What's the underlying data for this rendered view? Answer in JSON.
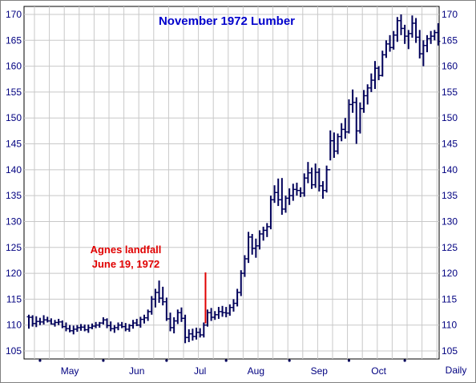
{
  "chart_data": {
    "type": "bar",
    "style": "ohlc",
    "title": "November 1972 Lumber",
    "frequency_label": "Daily",
    "ylim": [
      105,
      170
    ],
    "y_ticks": [
      105,
      110,
      115,
      120,
      125,
      130,
      135,
      140,
      145,
      150,
      155,
      160,
      165,
      170
    ],
    "y_axis_sides": "left and right",
    "grid": true,
    "x_month_labels": [
      "May",
      "Jun",
      "Jul",
      "Aug",
      "Sep",
      "Oct"
    ],
    "annotation": {
      "lines": [
        "Agnes landfall",
        "June 19, 1972"
      ],
      "color": "#e00000",
      "index": 48
    },
    "colors": {
      "bars": "#00005a",
      "title": "#0000cc",
      "axis_text": "#000080",
      "grid": "#c8c8c8",
      "background": "#ffffff",
      "outer": "#808080"
    },
    "series": [
      {
        "values": [
          [
            111.6,
            112.0,
            109.3,
            111.5
          ],
          [
            111.5,
            111.9,
            109.7,
            110.3
          ],
          [
            110.3,
            111.7,
            109.6,
            110.7
          ],
          [
            110.7,
            111.4,
            110.0,
            110.6
          ],
          [
            110.6,
            111.9,
            110.1,
            111.0
          ],
          [
            111.0,
            111.6,
            110.5,
            110.8
          ],
          [
            110.8,
            111.3,
            110.1,
            110.2
          ],
          [
            110.2,
            111.0,
            109.7,
            110.5
          ],
          [
            110.5,
            111.2,
            110.0,
            110.6
          ],
          [
            110.6,
            110.9,
            109.4,
            109.7
          ],
          [
            109.7,
            110.5,
            108.8,
            109.3
          ],
          [
            109.3,
            110.0,
            108.6,
            108.9
          ],
          [
            108.9,
            109.9,
            108.2,
            109.2
          ],
          [
            109.2,
            110.0,
            108.7,
            109.5
          ],
          [
            109.5,
            110.2,
            108.9,
            109.6
          ],
          [
            109.6,
            110.1,
            108.8,
            109.1
          ],
          [
            109.1,
            110.1,
            108.5,
            109.5
          ],
          [
            109.5,
            110.3,
            109.2,
            109.8
          ],
          [
            109.8,
            110.6,
            109.4,
            110.0
          ],
          [
            110.0,
            110.6,
            109.5,
            110.4
          ],
          [
            110.4,
            111.5,
            110.1,
            111.0
          ],
          [
            111.0,
            111.3,
            109.4,
            109.9
          ],
          [
            109.9,
            110.7,
            108.8,
            109.3
          ],
          [
            109.3,
            110.0,
            108.5,
            109.5
          ],
          [
            109.5,
            110.5,
            109.0,
            110.0
          ],
          [
            110.0,
            110.6,
            109.4,
            109.7
          ],
          [
            109.7,
            110.4,
            108.8,
            109.2
          ],
          [
            109.2,
            110.2,
            108.7,
            109.9
          ],
          [
            109.9,
            111.0,
            109.3,
            110.4
          ],
          [
            110.4,
            111.2,
            109.8,
            110.0
          ],
          [
            110.0,
            111.6,
            109.5,
            111.1
          ],
          [
            111.1,
            112.0,
            110.3,
            111.4
          ],
          [
            111.4,
            113.0,
            110.8,
            112.6
          ],
          [
            112.6,
            115.6,
            112.0,
            115.0
          ],
          [
            115.0,
            117.0,
            113.4,
            116.3
          ],
          [
            116.3,
            118.6,
            114.3,
            115.2
          ],
          [
            115.2,
            117.4,
            113.8,
            114.5
          ],
          [
            114.5,
            115.3,
            110.8,
            111.2
          ],
          [
            111.2,
            112.4,
            108.8,
            109.5
          ],
          [
            109.5,
            111.5,
            108.4,
            110.8
          ],
          [
            110.8,
            113.0,
            110.2,
            112.4
          ],
          [
            112.4,
            113.4,
            110.6,
            111.3
          ],
          [
            111.3,
            112.0,
            106.5,
            107.6
          ],
          [
            107.6,
            109.2,
            106.7,
            108.3
          ],
          [
            108.3,
            109.3,
            107.0,
            107.8
          ],
          [
            107.8,
            109.5,
            107.2,
            108.6
          ],
          [
            108.6,
            109.4,
            107.6,
            108.1
          ],
          [
            108.1,
            110.5,
            107.6,
            110.0
          ],
          [
            110.0,
            113.0,
            109.7,
            112.4
          ],
          [
            112.4,
            113.3,
            110.8,
            111.5
          ],
          [
            111.5,
            112.7,
            111.0,
            112.0
          ],
          [
            112.0,
            113.5,
            111.2,
            112.6
          ],
          [
            112.6,
            113.7,
            111.6,
            112.4
          ],
          [
            112.4,
            113.5,
            111.5,
            112.3
          ],
          [
            112.3,
            114.0,
            111.8,
            113.4
          ],
          [
            113.4,
            115.0,
            112.6,
            114.2
          ],
          [
            114.2,
            117.0,
            113.6,
            116.3
          ],
          [
            116.3,
            120.6,
            115.6,
            120.0
          ],
          [
            120.0,
            123.5,
            119.3,
            122.8
          ],
          [
            122.8,
            128.0,
            122.0,
            127.0
          ],
          [
            127.0,
            127.6,
            123.6,
            124.8
          ],
          [
            124.8,
            126.7,
            123.0,
            125.3
          ],
          [
            125.3,
            128.3,
            124.6,
            127.6
          ],
          [
            127.6,
            129.0,
            126.3,
            128.3
          ],
          [
            128.3,
            129.7,
            127.0,
            129.0
          ],
          [
            129.0,
            135.0,
            128.5,
            134.2
          ],
          [
            134.2,
            137.0,
            133.6,
            135.6
          ],
          [
            135.6,
            138.3,
            133.0,
            134.2
          ],
          [
            134.2,
            138.4,
            131.3,
            132.4
          ],
          [
            132.4,
            135.0,
            131.7,
            134.5
          ],
          [
            134.5,
            136.4,
            133.2,
            135.0
          ],
          [
            135.0,
            137.3,
            134.0,
            136.2
          ],
          [
            136.2,
            137.5,
            135.0,
            136.0
          ],
          [
            136.0,
            136.6,
            134.7,
            135.5
          ],
          [
            135.5,
            139.3,
            134.8,
            138.4
          ],
          [
            138.4,
            141.5,
            137.4,
            139.4
          ],
          [
            139.4,
            140.4,
            136.3,
            137.1
          ],
          [
            137.1,
            141.2,
            136.5,
            139.5
          ],
          [
            139.5,
            140.3,
            135.8,
            136.9
          ],
          [
            136.9,
            137.8,
            134.4,
            136.0
          ],
          [
            136.0,
            140.8,
            135.6,
            140.0
          ],
          [
            140.0,
            147.6,
            141.8,
            145.6
          ],
          [
            145.6,
            147.2,
            142.3,
            143.6
          ],
          [
            143.6,
            147.0,
            143.0,
            146.4
          ],
          [
            146.4,
            149.0,
            145.5,
            147.8
          ],
          [
            147.8,
            150.0,
            146.0,
            147.3
          ],
          [
            147.3,
            153.6,
            147.0,
            152.6
          ],
          [
            152.6,
            155.5,
            151.0,
            153.0
          ],
          [
            153.0,
            154.0,
            145.0,
            147.5
          ],
          [
            147.5,
            153.0,
            147.0,
            151.8
          ],
          [
            151.8,
            155.4,
            151.0,
            154.3
          ],
          [
            154.3,
            156.5,
            152.6,
            155.8
          ],
          [
            155.8,
            158.6,
            155.0,
            157.3
          ],
          [
            157.3,
            161.0,
            155.6,
            159.6
          ],
          [
            159.6,
            160.0,
            157.3,
            158.2
          ],
          [
            158.2,
            163.0,
            158.0,
            162.2
          ],
          [
            162.2,
            165.0,
            161.6,
            164.3
          ],
          [
            164.3,
            166.0,
            162.8,
            163.6
          ],
          [
            163.6,
            166.8,
            163.2,
            166.0
          ],
          [
            166.0,
            169.5,
            164.7,
            168.8
          ],
          [
            168.8,
            170.0,
            166.0,
            167.3
          ],
          [
            167.3,
            168.0,
            164.3,
            165.8
          ],
          [
            165.8,
            167.0,
            163.3,
            166.3
          ],
          [
            166.3,
            169.8,
            165.5,
            168.3
          ],
          [
            168.3,
            169.3,
            164.5,
            165.6
          ],
          [
            165.6,
            167.0,
            161.5,
            162.4
          ],
          [
            162.4,
            165.0,
            160.0,
            164.0
          ],
          [
            164.0,
            166.0,
            162.7,
            165.3
          ],
          [
            165.3,
            166.8,
            164.3,
            165.8
          ],
          [
            165.8,
            167.0,
            165.0,
            166.5
          ],
          [
            166.5,
            168.3,
            164.0,
            164.8
          ]
        ]
      }
    ]
  }
}
